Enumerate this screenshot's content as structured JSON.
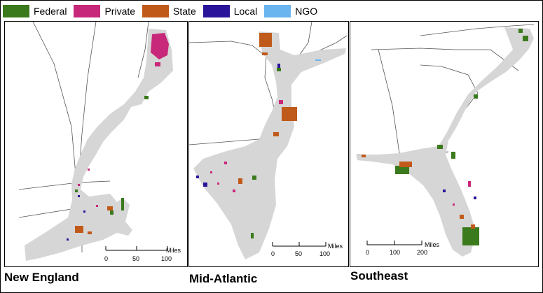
{
  "legend": [
    {
      "label": "Federal",
      "color": "#3a7a1c"
    },
    {
      "label": "Private",
      "color": "#c8287a"
    },
    {
      "label": "State",
      "color": "#c05a1a"
    },
    {
      "label": "Local",
      "color": "#2a159a"
    },
    {
      "label": "NGO",
      "color": "#6ab4f0"
    }
  ],
  "colors": {
    "coast_land": "#d6d6d6",
    "boundary": "#555555"
  },
  "panels": [
    {
      "title": "New England",
      "scale": {
        "unit": "Miles",
        "ticks": [
          "0",
          "50",
          "100"
        ]
      }
    },
    {
      "title": "Mid-Atlantic",
      "scale": {
        "unit": "Miles",
        "ticks": [
          "0",
          "50",
          "100"
        ]
      }
    },
    {
      "title": "Southeast",
      "scale": {
        "unit": "Miles",
        "ticks": [
          "0",
          "100",
          "200"
        ]
      }
    }
  ]
}
